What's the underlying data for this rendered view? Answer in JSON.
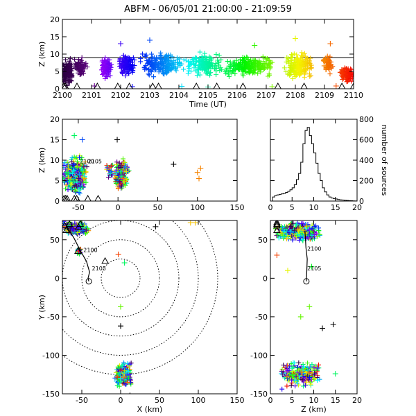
{
  "title": "ABFM - 06/05/01 21:00:00 - 21:09:59",
  "chart_data": [
    {
      "id": "time-height",
      "type": "scatter",
      "xlabel": "Time (UT)",
      "ylabel": "Z (km)",
      "xlim": [
        0,
        10
      ],
      "ylim": [
        0,
        20
      ],
      "x_ticks": [
        "2100",
        "2101",
        "2102",
        "2103",
        "2104",
        "2105",
        "2106",
        "2107",
        "2108",
        "2109",
        "2110"
      ],
      "y_ticks": [
        0,
        5,
        10,
        15,
        20
      ],
      "reference_line_z": 9,
      "color_by": "time",
      "station_markers_time": [
        0.05,
        0.1,
        0.5,
        1.2,
        1.9,
        2.3,
        3.1,
        3.3,
        4.6,
        5.3,
        6.2,
        7.4,
        8.3,
        9.6,
        10.0
      ],
      "clusters": [
        {
          "t": [
            0.0,
            0.35
          ],
          "z": [
            0.5,
            9
          ],
          "weight": 160
        },
        {
          "t": [
            0.35,
            0.9
          ],
          "z": [
            3,
            9.5
          ],
          "weight": 70
        },
        {
          "t": [
            1.3,
            1.7
          ],
          "z": [
            2,
            10
          ],
          "weight": 80
        },
        {
          "t": [
            1.9,
            2.5
          ],
          "z": [
            3,
            11
          ],
          "weight": 120
        },
        {
          "t": [
            2.6,
            4.2
          ],
          "z": [
            3,
            11
          ],
          "weight": 200
        },
        {
          "t": [
            4.2,
            5.5
          ],
          "z": [
            3,
            11
          ],
          "weight": 160
        },
        {
          "t": [
            5.5,
            7.3
          ],
          "z": [
            3,
            10
          ],
          "weight": 220
        },
        {
          "t": [
            7.6,
            8.6
          ],
          "z": [
            2,
            11
          ],
          "weight": 190
        },
        {
          "t": [
            8.9,
            9.3
          ],
          "z": [
            4,
            10
          ],
          "weight": 60
        },
        {
          "t": [
            9.5,
            10.0
          ],
          "z": [
            1,
            7
          ],
          "weight": 90
        }
      ],
      "outliers": [
        {
          "t": 1.1,
          "z": 0.8
        },
        {
          "t": 2.0,
          "z": 13
        },
        {
          "t": 2.4,
          "z": 0.6
        },
        {
          "t": 3.0,
          "z": 14
        },
        {
          "t": 4.1,
          "z": 0.7
        },
        {
          "t": 5.0,
          "z": 0.5
        },
        {
          "t": 6.6,
          "z": 12.5
        },
        {
          "t": 7.2,
          "z": 0.6
        },
        {
          "t": 8.0,
          "z": 14.5
        },
        {
          "t": 9.2,
          "z": 13
        },
        {
          "t": 9.4,
          "z": 0.8
        }
      ]
    },
    {
      "id": "x-height",
      "type": "scatter",
      "xlabel": "",
      "ylabel": "Z (km)",
      "xlim": [
        -70,
        150
      ],
      "ylim": [
        0,
        20
      ],
      "x_ticks": [
        -50,
        0,
        50,
        100,
        150
      ],
      "y_ticks": [
        0,
        5,
        10,
        15,
        20
      ],
      "annotations": [
        {
          "text": "2100",
          "x": -48,
          "z": 9.2
        },
        {
          "text": "2105",
          "x": -38,
          "z": 9.2
        }
      ],
      "color_by": "time",
      "station_markers_x": [
        -68,
        -66,
        -64,
        -55,
        -52,
        -38,
        -25
      ],
      "clusters": [
        {
          "x": [
            -70,
            -38
          ],
          "z": [
            1,
            12
          ],
          "weight": 420
        },
        {
          "x": [
            -5,
            14
          ],
          "z": [
            2,
            11
          ],
          "weight": 190
        },
        {
          "x": [
            -15,
            -5
          ],
          "z": [
            5,
            10
          ],
          "weight": 25
        }
      ],
      "outliers": [
        {
          "x": 70,
          "z": 9,
          "c": 0
        },
        {
          "x": 100,
          "z": 7,
          "c": 0.9
        },
        {
          "x": 102,
          "z": 5.5,
          "c": 0.9
        },
        {
          "x": 104,
          "z": 8,
          "c": 0.9
        },
        {
          "x": -1,
          "z": 15,
          "c": 0
        },
        {
          "x": -55,
          "z": 16,
          "c": 0.55
        },
        {
          "x": -45,
          "z": 15,
          "c": 0.3
        }
      ]
    },
    {
      "id": "height-histogram",
      "type": "bar",
      "xlabel": "",
      "ylabel": "number of sources",
      "xlim": [
        0,
        20
      ],
      "ylim": [
        0,
        800
      ],
      "x_ticks": [
        0,
        5,
        10,
        15,
        20
      ],
      "y_ticks": [
        0,
        200,
        400,
        600,
        800
      ],
      "bin_width": 0.5,
      "bin_start": 0,
      "values": [
        0,
        40,
        55,
        60,
        65,
        70,
        75,
        85,
        95,
        110,
        130,
        160,
        210,
        270,
        380,
        560,
        690,
        720,
        640,
        560,
        470,
        370,
        270,
        200,
        130,
        90,
        60,
        40,
        30,
        25,
        20,
        15,
        12,
        10,
        8,
        6,
        4,
        3,
        2,
        1
      ]
    },
    {
      "id": "plan-view",
      "type": "scatter",
      "xlabel": "X (km)",
      "ylabel": "Y (km)",
      "xlim": [
        -75,
        150
      ],
      "ylim": [
        -150,
        75
      ],
      "x_ticks": [
        -50,
        0,
        50,
        100,
        150
      ],
      "y_ticks": [
        -150,
        -100,
        -50,
        0,
        50
      ],
      "range_rings_km": [
        25,
        50,
        75,
        100,
        125
      ],
      "annotations": [
        {
          "text": "2100",
          "x": -48,
          "y": 34
        },
        {
          "text": "2105",
          "x": -37,
          "y": 10
        }
      ],
      "track": [
        [
          -68,
          65
        ],
        [
          -60,
          52
        ],
        [
          -52,
          36
        ],
        [
          -44,
          22
        ],
        [
          -40,
          8
        ],
        [
          -42,
          0
        ],
        [
          -41,
          -4
        ]
      ],
      "station_markers": [
        [
          -72,
          68
        ],
        [
          -70,
          62
        ],
        [
          -66,
          70
        ],
        [
          -54,
          66
        ],
        [
          -52,
          70
        ],
        [
          -55,
          35
        ],
        [
          -20,
          22
        ]
      ],
      "color_by": "time",
      "clusters": [
        {
          "x": [
            -75,
            -40
          ],
          "y": [
            55,
            75
          ],
          "weight": 260
        },
        {
          "x": [
            -58,
            -50
          ],
          "y": [
            30,
            40
          ],
          "weight": 20
        },
        {
          "x": [
            -8,
            15
          ],
          "y": [
            -145,
            -105
          ],
          "weight": 240
        }
      ],
      "outliers": [
        {
          "x": 0,
          "y": -37,
          "c": 0.7
        },
        {
          "x": 0,
          "y": -62,
          "c": 0
        },
        {
          "x": 45,
          "y": 67,
          "c": 0
        },
        {
          "x": 90,
          "y": 72,
          "c": 0.85
        },
        {
          "x": 96,
          "y": 72,
          "c": 0.85
        },
        {
          "x": -3,
          "y": 31,
          "c": 0.95
        },
        {
          "x": 5,
          "y": 20,
          "c": 0.55
        },
        {
          "x": 12,
          "y": -152,
          "c": 0
        }
      ]
    },
    {
      "id": "height-y",
      "type": "scatter",
      "xlabel": "Z (km)",
      "ylabel": "",
      "xlim": [
        0,
        20
      ],
      "ylim": [
        -150,
        75
      ],
      "x_ticks": [
        0,
        5,
        10,
        15,
        20
      ],
      "y_ticks": [
        -150,
        -100,
        -50,
        0,
        50
      ],
      "annotations": [
        {
          "text": "2100",
          "z": 8.5,
          "y": 36
        },
        {
          "text": "2105",
          "z": 8.5,
          "y": 10
        }
      ],
      "track": [
        [
          8.0,
          60
        ],
        [
          8.2,
          40
        ],
        [
          8.5,
          25
        ],
        [
          8.4,
          10
        ],
        [
          8.3,
          -4
        ]
      ],
      "station_markers_y": [
        72,
        68,
        62,
        70
      ],
      "color_by": "time",
      "clusters": [
        {
          "z": [
            1,
            12
          ],
          "y": [
            45,
            75
          ],
          "weight": 330
        },
        {
          "z": [
            2,
            12
          ],
          "y": [
            -145,
            -105
          ],
          "weight": 240
        }
      ],
      "outliers": [
        {
          "z": 14.5,
          "y": -60,
          "c": 0
        },
        {
          "z": 12,
          "y": -65,
          "c": 0
        },
        {
          "z": 9,
          "y": -37,
          "c": 0.7
        },
        {
          "z": 1.5,
          "y": 30,
          "c": 0.95
        },
        {
          "z": 4,
          "y": 10,
          "c": 0.8
        },
        {
          "z": 9.5,
          "y": 15,
          "c": 0.6
        },
        {
          "z": 7,
          "y": -50,
          "c": 0.7
        },
        {
          "z": 15,
          "y": -124,
          "c": 0.55
        }
      ]
    }
  ]
}
